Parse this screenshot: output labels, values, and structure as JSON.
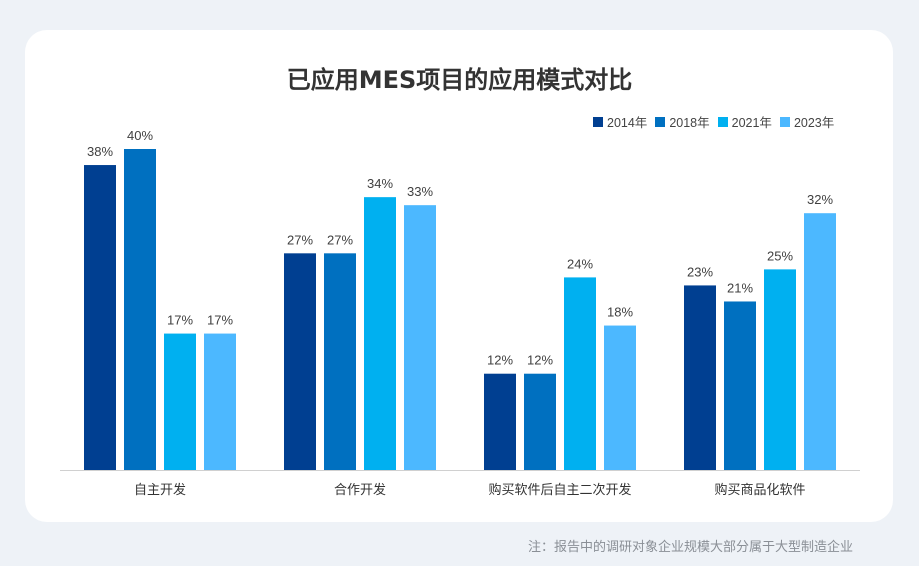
{
  "title": "已应用MES项目的应用模式对比",
  "note": "注：报告中的调研对象企业规模大部分属于大型制造企业",
  "chart_data": {
    "type": "bar",
    "title": "已应用MES项目的应用模式对比",
    "categories": [
      "自主开发",
      "合作开发",
      "购买软件后自主二次开发",
      "购买商品化软件"
    ],
    "series": [
      {
        "name": "2014年",
        "color": "#003f91",
        "values": [
          38,
          27,
          12,
          23
        ]
      },
      {
        "name": "2018年",
        "color": "#0070c0",
        "values": [
          40,
          27,
          12,
          21
        ]
      },
      {
        "name": "2021年",
        "color": "#00b0f0",
        "values": [
          17,
          34,
          24,
          25
        ]
      },
      {
        "name": "2023年",
        "color": "#4cb8ff",
        "values": [
          17,
          33,
          18,
          32
        ]
      }
    ],
    "value_suffix": "%",
    "ylim": [
      0,
      40
    ],
    "grid": false,
    "legend": "top-right"
  }
}
